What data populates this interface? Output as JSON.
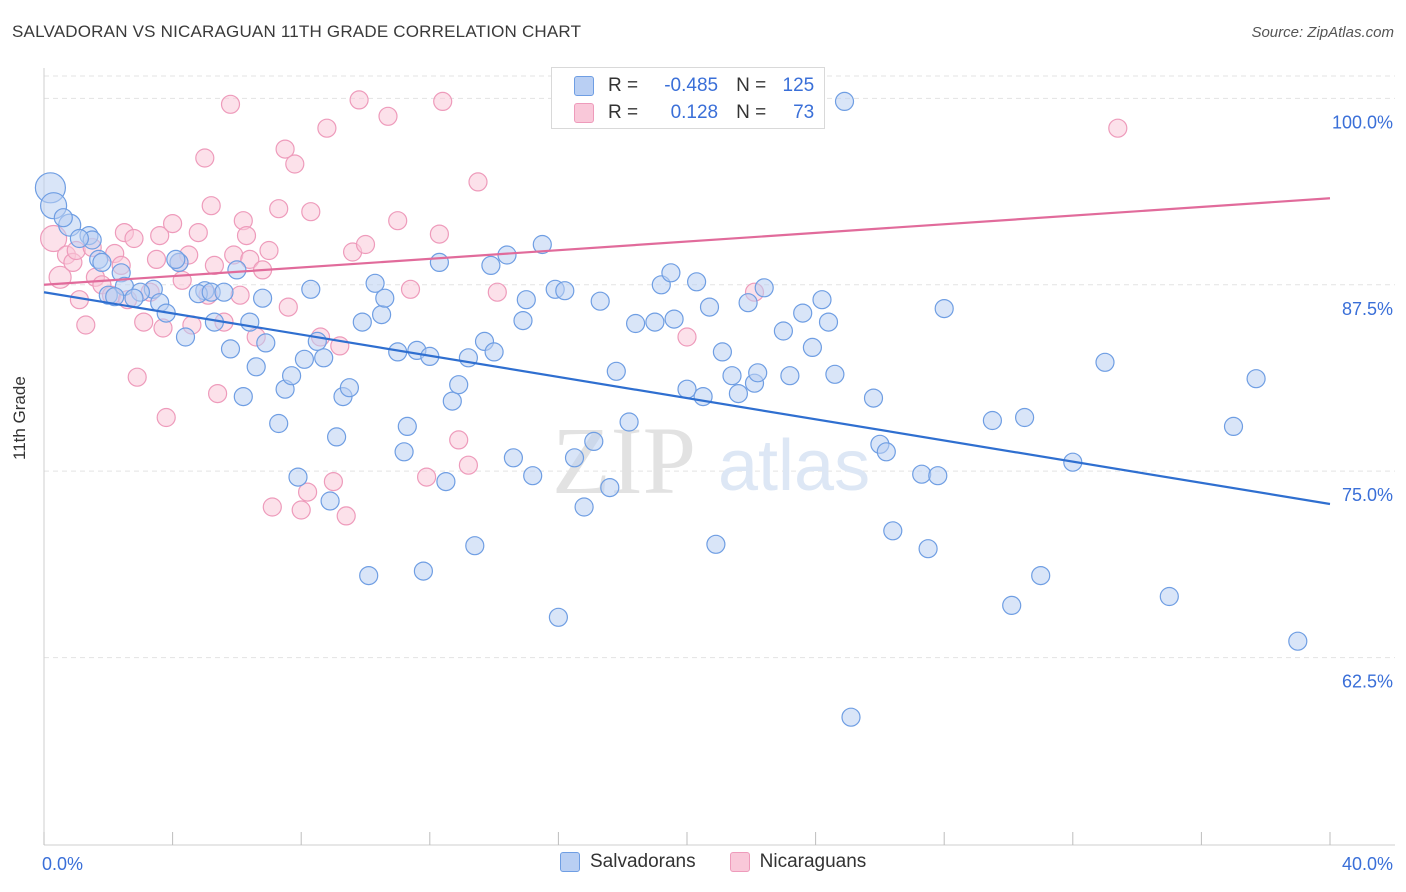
{
  "title": "SALVADORAN VS NICARAGUAN 11TH GRADE CORRELATION CHART",
  "source": "Source: ZipAtlas.com",
  "watermark": {
    "zip": "ZIP",
    "atlas": "atlas"
  },
  "legend": {
    "rows": [
      {
        "r_label": "R =",
        "r_value": "-0.485",
        "n_label": "N =",
        "n_value": "125"
      },
      {
        "r_label": "R =",
        "r_value": "0.128",
        "n_label": "N =",
        "n_value": "73"
      }
    ]
  },
  "chart_data": {
    "type": "scatter",
    "title": "SALVADORAN VS NICARAGUAN 11TH GRADE CORRELATION CHART",
    "xlabel": "",
    "ylabel": "11th Grade",
    "xlim": [
      0,
      40
    ],
    "ylim": [
      50,
      101.5
    ],
    "x_tick_labels": [
      "0.0%",
      "40.0%"
    ],
    "y_ticks": [
      62.5,
      75.0,
      87.5,
      100.0
    ],
    "y_tick_labels": [
      "62.5%",
      "75.0%",
      "87.5%",
      "100.0%"
    ],
    "grid": true,
    "legend_placement": "top-center",
    "series": [
      {
        "name": "Salvadorans",
        "color": "#7aa6e6",
        "trend": {
          "x": [
            0,
            40
          ],
          "y": [
            87.0,
            72.8
          ],
          "color": "#2f6fd0"
        },
        "points": [
          [
            0.2,
            94.0
          ],
          [
            0.3,
            92.8
          ],
          [
            0.8,
            91.5
          ],
          [
            1.4,
            90.8
          ],
          [
            1.5,
            90.5
          ],
          [
            1.7,
            89.2
          ],
          [
            1.8,
            89.0
          ],
          [
            2.4,
            88.3
          ],
          [
            2.5,
            87.4
          ],
          [
            2.0,
            86.8
          ],
          [
            2.2,
            86.7
          ],
          [
            3.4,
            87.2
          ],
          [
            3.0,
            87.0
          ],
          [
            2.8,
            86.6
          ],
          [
            3.6,
            86.3
          ],
          [
            3.8,
            85.6
          ],
          [
            4.2,
            89.0
          ],
          [
            4.4,
            84.0
          ],
          [
            5.0,
            87.1
          ],
          [
            4.8,
            86.9
          ],
          [
            5.2,
            87.0
          ],
          [
            5.6,
            87.0
          ],
          [
            5.3,
            85.0
          ],
          [
            5.8,
            83.2
          ],
          [
            6.0,
            88.5
          ],
          [
            6.2,
            80.0
          ],
          [
            6.4,
            85.0
          ],
          [
            6.6,
            82.0
          ],
          [
            6.8,
            86.6
          ],
          [
            6.9,
            83.6
          ],
          [
            7.3,
            78.2
          ],
          [
            7.5,
            80.5
          ],
          [
            7.7,
            81.4
          ],
          [
            7.9,
            74.6
          ],
          [
            8.1,
            82.5
          ],
          [
            8.3,
            87.2
          ],
          [
            8.5,
            83.7
          ],
          [
            8.7,
            82.6
          ],
          [
            8.9,
            73.0
          ],
          [
            9.1,
            77.3
          ],
          [
            9.3,
            80.0
          ],
          [
            9.5,
            80.6
          ],
          [
            9.9,
            85.0
          ],
          [
            10.1,
            68.0
          ],
          [
            10.3,
            87.6
          ],
          [
            10.5,
            85.5
          ],
          [
            10.6,
            86.6
          ],
          [
            11.0,
            83.0
          ],
          [
            11.2,
            76.3
          ],
          [
            11.3,
            78.0
          ],
          [
            11.6,
            83.1
          ],
          [
            11.8,
            68.3
          ],
          [
            12.0,
            82.7
          ],
          [
            12.3,
            89.0
          ],
          [
            12.5,
            74.3
          ],
          [
            12.7,
            79.7
          ],
          [
            12.9,
            80.8
          ],
          [
            13.2,
            82.6
          ],
          [
            13.4,
            70.0
          ],
          [
            13.7,
            83.7
          ],
          [
            13.9,
            88.8
          ],
          [
            14.0,
            83.0
          ],
          [
            14.4,
            89.5
          ],
          [
            14.6,
            75.9
          ],
          [
            14.9,
            85.1
          ],
          [
            15.0,
            86.5
          ],
          [
            15.2,
            74.7
          ],
          [
            15.5,
            90.2
          ],
          [
            15.9,
            87.2
          ],
          [
            16.2,
            87.1
          ],
          [
            16.0,
            65.2
          ],
          [
            16.5,
            75.9
          ],
          [
            16.8,
            72.6
          ],
          [
            17.1,
            77.0
          ],
          [
            17.3,
            86.4
          ],
          [
            17.6,
            73.9
          ],
          [
            17.8,
            81.7
          ],
          [
            18.2,
            78.3
          ],
          [
            18.4,
            84.9
          ],
          [
            19.0,
            85.0
          ],
          [
            19.2,
            87.5
          ],
          [
            19.5,
            88.3
          ],
          [
            19.6,
            85.2
          ],
          [
            20.0,
            80.5
          ],
          [
            20.3,
            87.7
          ],
          [
            20.5,
            80.0
          ],
          [
            20.7,
            86.0
          ],
          [
            20.9,
            70.1
          ],
          [
            21.1,
            83.0
          ],
          [
            21.4,
            81.4
          ],
          [
            21.6,
            80.2
          ],
          [
            21.9,
            86.3
          ],
          [
            22.1,
            80.9
          ],
          [
            22.2,
            81.6
          ],
          [
            22.4,
            87.3
          ],
          [
            23.0,
            84.4
          ],
          [
            23.2,
            81.4
          ],
          [
            23.6,
            85.6
          ],
          [
            23.9,
            83.3
          ],
          [
            24.2,
            86.5
          ],
          [
            24.4,
            85.0
          ],
          [
            24.6,
            81.5
          ],
          [
            24.9,
            99.8
          ],
          [
            25.1,
            58.5
          ],
          [
            25.8,
            79.9
          ],
          [
            26.0,
            76.8
          ],
          [
            26.2,
            76.3
          ],
          [
            26.4,
            71.0
          ],
          [
            27.3,
            74.8
          ],
          [
            27.5,
            69.8
          ],
          [
            27.8,
            74.7
          ],
          [
            28.0,
            85.9
          ],
          [
            29.5,
            78.4
          ],
          [
            30.1,
            66.0
          ],
          [
            30.5,
            78.6
          ],
          [
            31.0,
            68.0
          ],
          [
            32.0,
            75.6
          ],
          [
            33.0,
            82.3
          ],
          [
            35.0,
            66.6
          ],
          [
            37.0,
            78.0
          ],
          [
            37.7,
            81.2
          ],
          [
            39.0,
            63.6
          ],
          [
            0.6,
            92.0
          ],
          [
            1.1,
            90.6
          ],
          [
            4.1,
            89.2
          ]
        ],
        "sizes": {
          "0": 15,
          "1": 13,
          "2": 11
        }
      },
      {
        "name": "Nicaraguans",
        "color": "#f2a2bf",
        "trend": {
          "x": [
            0,
            40
          ],
          "y": [
            87.5,
            93.3
          ],
          "color": "#e16b9b"
        },
        "points": [
          [
            0.3,
            90.6
          ],
          [
            0.5,
            88.0
          ],
          [
            0.7,
            89.5
          ],
          [
            0.9,
            89.0
          ],
          [
            1.0,
            89.8
          ],
          [
            1.1,
            86.5
          ],
          [
            1.3,
            84.8
          ],
          [
            1.5,
            90.0
          ],
          [
            1.6,
            88.0
          ],
          [
            1.8,
            87.5
          ],
          [
            2.1,
            86.8
          ],
          [
            2.2,
            89.6
          ],
          [
            2.4,
            88.8
          ],
          [
            2.5,
            91.0
          ],
          [
            2.6,
            86.5
          ],
          [
            2.8,
            90.6
          ],
          [
            2.9,
            81.3
          ],
          [
            3.1,
            85.0
          ],
          [
            3.3,
            87.0
          ],
          [
            3.5,
            89.2
          ],
          [
            3.6,
            90.8
          ],
          [
            3.7,
            84.6
          ],
          [
            3.8,
            78.6
          ],
          [
            4.0,
            91.6
          ],
          [
            4.2,
            89.0
          ],
          [
            4.3,
            87.8
          ],
          [
            4.5,
            89.5
          ],
          [
            4.6,
            84.8
          ],
          [
            4.8,
            91.0
          ],
          [
            5.0,
            96.0
          ],
          [
            5.1,
            86.8
          ],
          [
            5.2,
            92.8
          ],
          [
            5.3,
            88.8
          ],
          [
            5.4,
            80.2
          ],
          [
            5.6,
            85.0
          ],
          [
            5.8,
            99.6
          ],
          [
            5.9,
            89.5
          ],
          [
            6.1,
            86.8
          ],
          [
            6.2,
            91.8
          ],
          [
            6.3,
            90.8
          ],
          [
            6.4,
            89.2
          ],
          [
            6.6,
            84.0
          ],
          [
            6.8,
            88.5
          ],
          [
            7.0,
            89.8
          ],
          [
            7.1,
            72.6
          ],
          [
            7.3,
            92.6
          ],
          [
            7.5,
            96.6
          ],
          [
            7.6,
            86.0
          ],
          [
            7.8,
            95.6
          ],
          [
            8.0,
            72.4
          ],
          [
            8.2,
            73.6
          ],
          [
            8.3,
            92.4
          ],
          [
            8.6,
            84.0
          ],
          [
            8.8,
            98.0
          ],
          [
            9.0,
            74.3
          ],
          [
            9.2,
            83.4
          ],
          [
            9.4,
            72.0
          ],
          [
            9.6,
            89.7
          ],
          [
            9.8,
            99.9
          ],
          [
            10.0,
            90.2
          ],
          [
            10.7,
            98.8
          ],
          [
            11.0,
            91.8
          ],
          [
            11.4,
            87.2
          ],
          [
            11.9,
            74.6
          ],
          [
            12.3,
            90.9
          ],
          [
            12.4,
            99.8
          ],
          [
            12.9,
            77.1
          ],
          [
            13.2,
            75.4
          ],
          [
            13.5,
            94.4
          ],
          [
            14.1,
            87.0
          ],
          [
            20.0,
            84.0
          ],
          [
            22.1,
            87.0
          ],
          [
            33.4,
            98.0
          ]
        ],
        "sizes": {
          "0": 13,
          "1": 11
        }
      }
    ]
  },
  "bottom_legend": [
    "Salvadorans",
    "Nicaraguans"
  ],
  "colors": {
    "blue_fill": "#b9cff3",
    "blue_stroke": "#6f9ee3",
    "pink_fill": "#f9c8d9",
    "pink_stroke": "#ee9bbb",
    "grid": "#e3e3e3",
    "tick_label": "#3a6fd8"
  }
}
